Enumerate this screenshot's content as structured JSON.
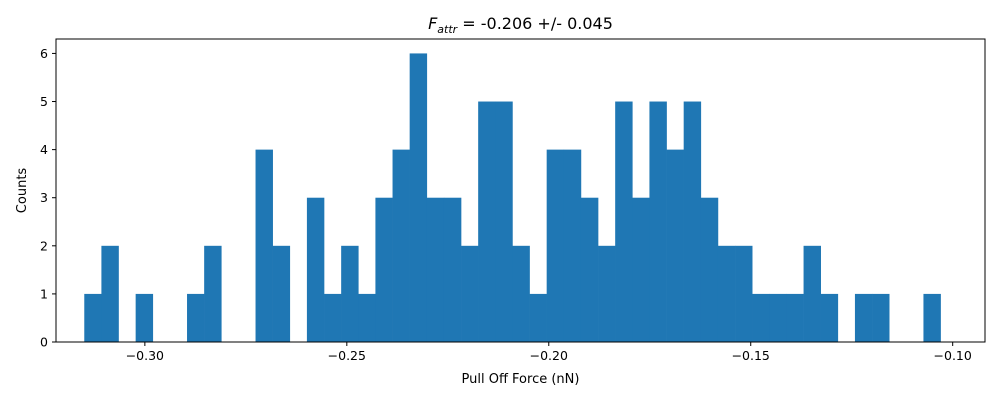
{
  "chart_data": {
    "type": "bar",
    "title_var": "F",
    "title_sub": "attr",
    "title_rest": " = -0.206 +/- 0.045",
    "xlabel": "Pull Off Force (nN)",
    "ylabel": "Counts",
    "xlim": [
      -0.322,
      -0.092
    ],
    "ylim": [
      0,
      6.3
    ],
    "xticks": [
      -0.3,
      -0.25,
      -0.2,
      -0.15,
      -0.1
    ],
    "xtick_labels": [
      "−0.30",
      "−0.25",
      "−0.20",
      "−0.15",
      "−0.10"
    ],
    "yticks": [
      0,
      1,
      2,
      3,
      4,
      5,
      6
    ],
    "ytick_labels": [
      "0",
      "1",
      "2",
      "3",
      "4",
      "5",
      "6"
    ],
    "bin_start": -0.315,
    "bin_width": 0.00424,
    "counts": [
      1,
      2,
      0,
      1,
      0,
      0,
      1,
      2,
      0,
      0,
      4,
      2,
      0,
      3,
      1,
      2,
      1,
      3,
      4,
      6,
      3,
      3,
      2,
      5,
      5,
      2,
      1,
      4,
      4,
      3,
      2,
      5,
      3,
      5,
      4,
      5,
      3,
      2,
      2,
      1,
      1,
      1,
      2,
      1,
      0,
      1,
      1,
      0,
      0,
      1
    ],
    "bar_color": "#1f77b4",
    "grid": false,
    "legend": "none"
  }
}
